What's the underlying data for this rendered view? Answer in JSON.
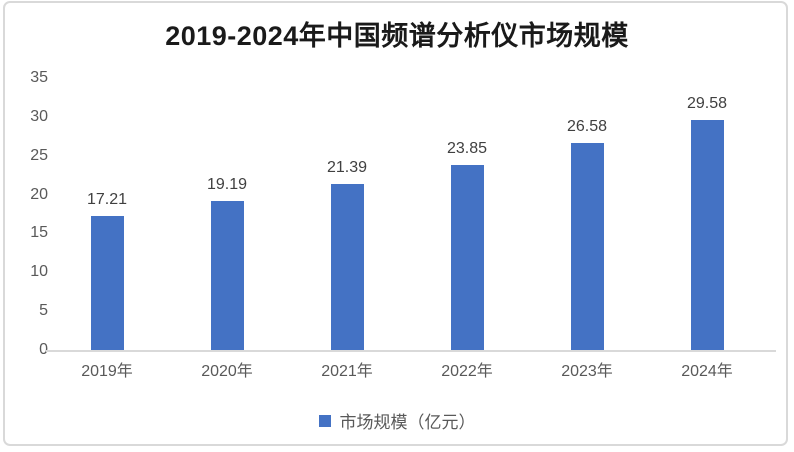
{
  "chart_data": {
    "type": "bar",
    "title": "2019-2024年中国频谱分析仪市场规模",
    "categories": [
      "2019年",
      "2020年",
      "2021年",
      "2022年",
      "2023年",
      "2024年"
    ],
    "values": [
      17.21,
      19.19,
      21.39,
      23.85,
      26.58,
      29.58
    ],
    "series_name": "市场规模（亿元）",
    "ylabel": "",
    "xlabel": "",
    "ylim": [
      0,
      35
    ],
    "ytick_step": 5,
    "grid": false,
    "value_labels": true,
    "legend_position": "bottom",
    "bar_color": "#4472c4",
    "colors": {
      "title_text": "#1a1a1a",
      "axis_text": "#595959",
      "value_label_text": "#404040",
      "axis_line": "#d9d9d9",
      "frame_border": "#d9d9d9",
      "background": "#ffffff"
    }
  }
}
